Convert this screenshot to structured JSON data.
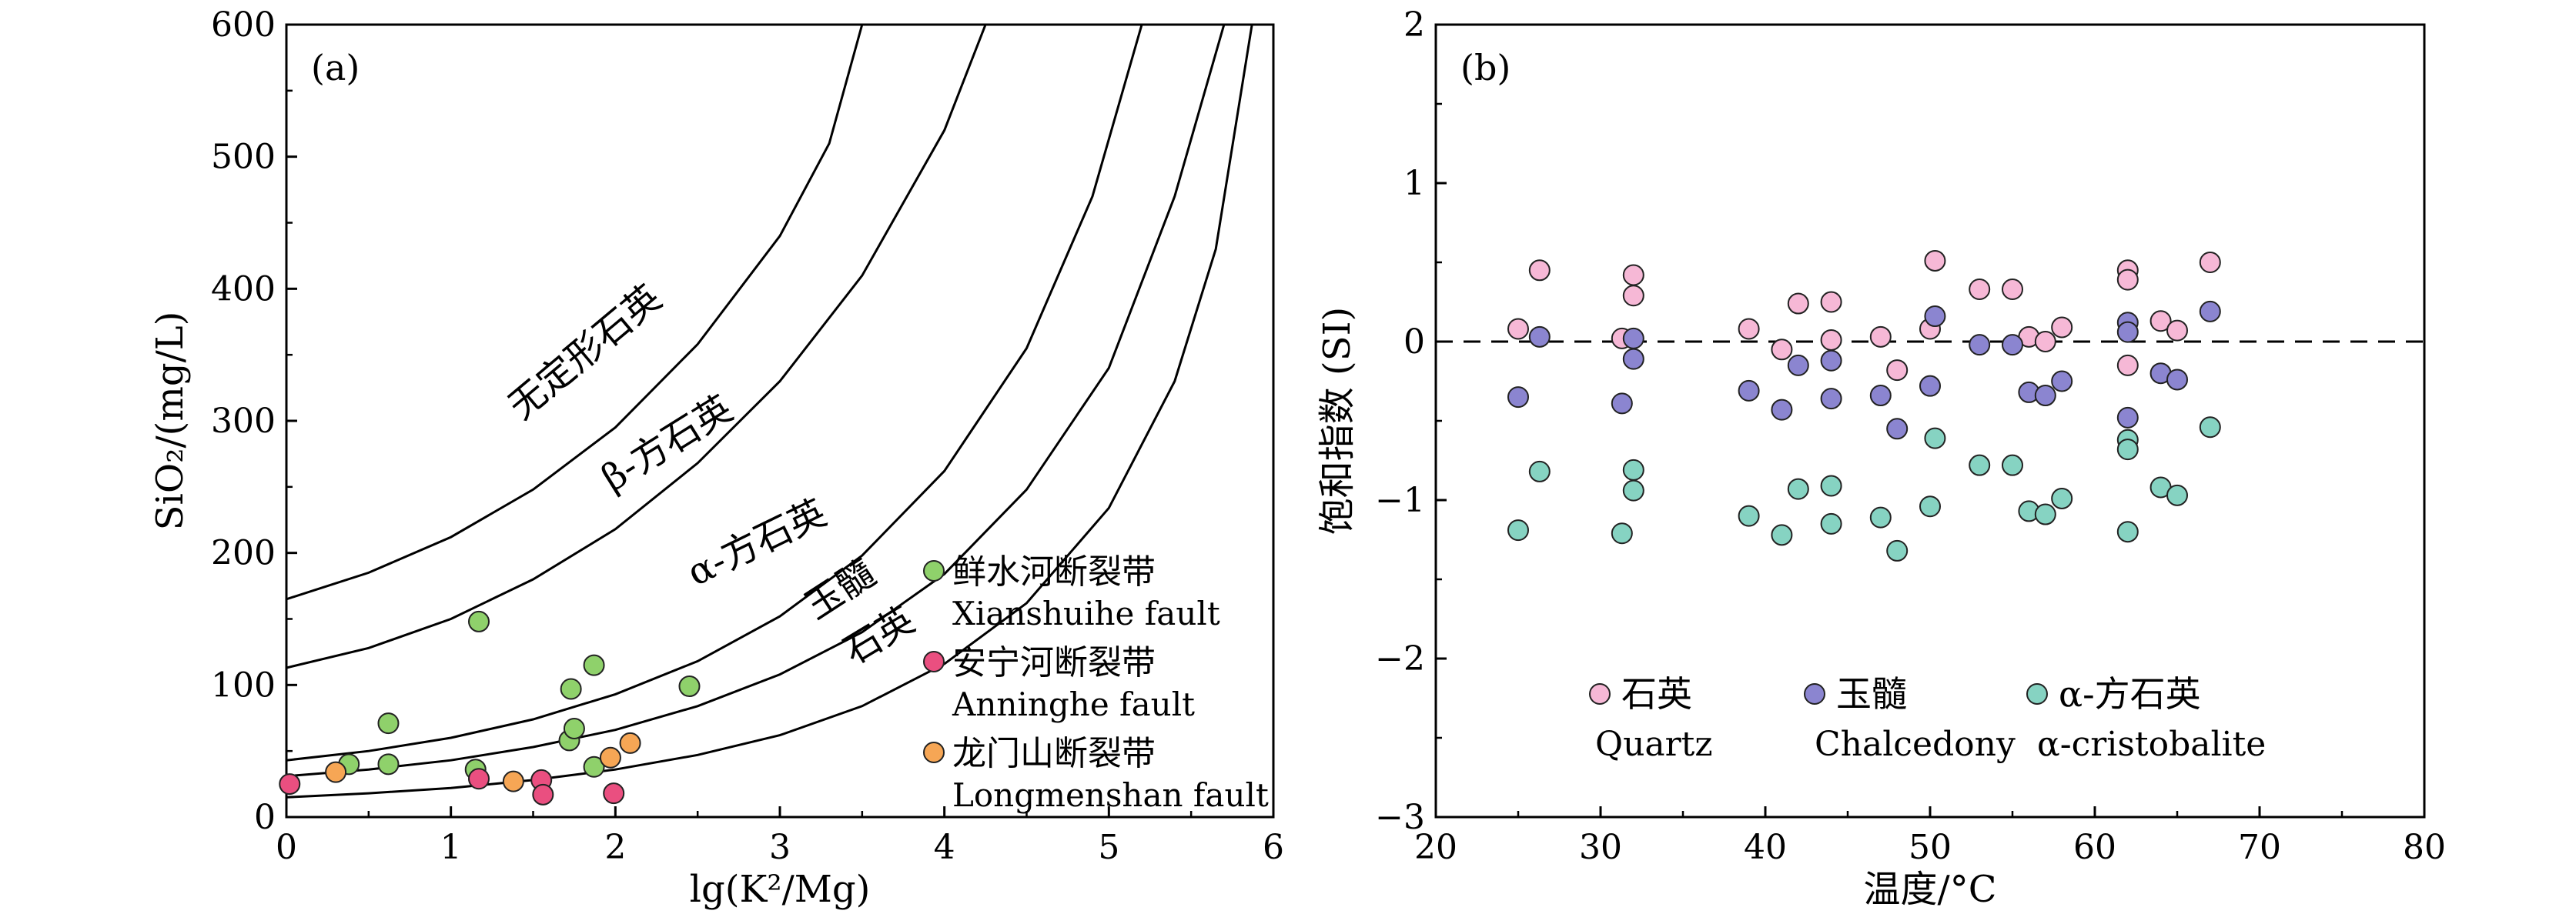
{
  "chart_data": [
    {
      "panel_label": "(a)",
      "type": "scatter",
      "xlabel": "lg(K²/Mg)",
      "ylabel": "SiO₂/(mg/L)",
      "xlim": [
        0,
        6
      ],
      "ylim": [
        0,
        600
      ],
      "xticks": [
        "0",
        "1",
        "2",
        "3",
        "4",
        "5",
        "6"
      ],
      "yticks": [
        "0",
        "100",
        "200",
        "300",
        "400",
        "500",
        "600"
      ],
      "curves": [
        {
          "label": "无定形石英",
          "points": [
            [
              0,
              165
            ],
            [
              0.5,
              185
            ],
            [
              1,
              212
            ],
            [
              1.5,
              248
            ],
            [
              2,
              295
            ],
            [
              2.5,
              358
            ],
            [
              3,
              440
            ],
            [
              3.3,
              510
            ],
            [
              3.5,
              600
            ]
          ]
        },
        {
          "label": "β-方石英",
          "points": [
            [
              0,
              113
            ],
            [
              0.5,
              128
            ],
            [
              1,
              150
            ],
            [
              1.5,
              180
            ],
            [
              2,
              218
            ],
            [
              2.5,
              268
            ],
            [
              3,
              330
            ],
            [
              3.5,
              410
            ],
            [
              4,
              520
            ],
            [
              4.25,
              600
            ]
          ]
        },
        {
          "label": "α-方石英",
          "points": [
            [
              0,
              43
            ],
            [
              0.5,
              50
            ],
            [
              1,
              60
            ],
            [
              1.5,
              74
            ],
            [
              2,
              93
            ],
            [
              2.5,
              118
            ],
            [
              3,
              152
            ],
            [
              3.5,
              198
            ],
            [
              4,
              262
            ],
            [
              4.5,
              355
            ],
            [
              4.9,
              470
            ],
            [
              5.2,
              600
            ]
          ]
        },
        {
          "label": "玉髓",
          "points": [
            [
              0,
              31
            ],
            [
              0.5,
              36
            ],
            [
              1,
              43
            ],
            [
              1.5,
              53
            ],
            [
              2,
              66
            ],
            [
              2.5,
              84
            ],
            [
              3,
              108
            ],
            [
              3.5,
              140
            ],
            [
              4,
              184
            ],
            [
              4.5,
              248
            ],
            [
              5,
              340
            ],
            [
              5.4,
              470
            ],
            [
              5.7,
              600
            ]
          ]
        },
        {
          "label": "石英",
          "points": [
            [
              0,
              15
            ],
            [
              0.5,
              18
            ],
            [
              1,
              22
            ],
            [
              1.5,
              28
            ],
            [
              2,
              36
            ],
            [
              2.5,
              47
            ],
            [
              3,
              62
            ],
            [
              3.5,
              84
            ],
            [
              4,
              116
            ],
            [
              4.5,
              162
            ],
            [
              5,
              234
            ],
            [
              5.4,
              330
            ],
            [
              5.65,
              430
            ],
            [
              5.87,
              600
            ]
          ]
        }
      ],
      "series": [
        {
          "name": "鲜水河断裂带",
          "name_en": "Xianshuihe fault",
          "color": "#8fd16b",
          "points": [
            [
              0.38,
              40
            ],
            [
              0.62,
              71
            ],
            [
              0.62,
              40
            ],
            [
              1.15,
              36
            ],
            [
              1.17,
              148
            ],
            [
              1.72,
              58
            ],
            [
              1.73,
              97
            ],
            [
              1.75,
              67
            ],
            [
              1.87,
              115
            ],
            [
              1.87,
              38
            ],
            [
              2.45,
              99
            ]
          ]
        },
        {
          "name": "安宁河断裂带",
          "name_en": "Anninghe fault",
          "color": "#ea4f80",
          "points": [
            [
              0.02,
              25
            ],
            [
              1.17,
              29
            ],
            [
              1.55,
              28
            ],
            [
              1.56,
              17
            ],
            [
              1.99,
              18
            ]
          ]
        },
        {
          "name": "龙门山断裂带",
          "name_en": "Longmenshan fault",
          "color": "#f6a655",
          "points": [
            [
              0.3,
              34
            ],
            [
              1.38,
              27
            ],
            [
              1.97,
              45
            ],
            [
              2.09,
              56
            ]
          ]
        }
      ]
    },
    {
      "panel_label": "(b)",
      "type": "scatter",
      "xlabel": "温度/°C",
      "ylabel": "饱和指数 (SI)",
      "xlim": [
        20,
        80
      ],
      "ylim": [
        -3,
        2
      ],
      "xticks": [
        "20",
        "30",
        "40",
        "50",
        "60",
        "70",
        "80"
      ],
      "yticks": [
        "−3",
        "−2",
        "−1",
        "0",
        "1",
        "2"
      ],
      "reference_line": {
        "y": 0,
        "style": "dashed"
      },
      "series": [
        {
          "name": "石英",
          "name_en": "Quartz",
          "color": "#f6b8d6",
          "points": [
            [
              25,
              0.08
            ],
            [
              26.3,
              0.45
            ],
            [
              31.3,
              0.02
            ],
            [
              32,
              0.42
            ],
            [
              32,
              0.29
            ],
            [
              39,
              0.08
            ],
            [
              41,
              -0.05
            ],
            [
              42,
              0.24
            ],
            [
              44,
              0.25
            ],
            [
              44,
              0.01
            ],
            [
              47,
              0.03
            ],
            [
              48,
              -0.18
            ],
            [
              50,
              0.08
            ],
            [
              50.3,
              0.51
            ],
            [
              53,
              0.33
            ],
            [
              55,
              0.33
            ],
            [
              56,
              0.03
            ],
            [
              57,
              0.0
            ],
            [
              58,
              0.09
            ],
            [
              62,
              0.45
            ],
            [
              62,
              0.39
            ],
            [
              62,
              -0.15
            ],
            [
              64,
              0.13
            ],
            [
              65,
              0.07
            ],
            [
              67,
              0.5
            ]
          ]
        },
        {
          "name": "玉髓",
          "name_en": "Chalcedony",
          "color": "#8b85d0",
          "points": [
            [
              25,
              -0.35
            ],
            [
              26.3,
              0.03
            ],
            [
              31.3,
              -0.39
            ],
            [
              32,
              0.02
            ],
            [
              32,
              -0.11
            ],
            [
              39,
              -0.31
            ],
            [
              41,
              -0.43
            ],
            [
              42,
              -0.15
            ],
            [
              44,
              -0.36
            ],
            [
              44,
              -0.12
            ],
            [
              47,
              -0.34
            ],
            [
              48,
              -0.55
            ],
            [
              50,
              -0.28
            ],
            [
              50.3,
              0.16
            ],
            [
              53,
              -0.02
            ],
            [
              55,
              -0.02
            ],
            [
              56,
              -0.32
            ],
            [
              57,
              -0.34
            ],
            [
              58,
              -0.25
            ],
            [
              62,
              0.12
            ],
            [
              62,
              0.06
            ],
            [
              62,
              -0.48
            ],
            [
              64,
              -0.2
            ],
            [
              65,
              -0.24
            ],
            [
              67,
              0.19
            ]
          ]
        },
        {
          "name": "α-方石英",
          "name_en": "α-cristobalite",
          "color": "#86d3c2",
          "points": [
            [
              25,
              -1.19
            ],
            [
              26.3,
              -0.82
            ],
            [
              31.3,
              -1.21
            ],
            [
              32,
              -0.81
            ],
            [
              32,
              -0.94
            ],
            [
              39,
              -1.1
            ],
            [
              41,
              -1.22
            ],
            [
              42,
              -0.93
            ],
            [
              44,
              -0.91
            ],
            [
              44,
              -1.15
            ],
            [
              47,
              -1.11
            ],
            [
              48,
              -1.32
            ],
            [
              50,
              -1.04
            ],
            [
              50.3,
              -0.61
            ],
            [
              53,
              -0.78
            ],
            [
              55,
              -0.78
            ],
            [
              56,
              -1.07
            ],
            [
              57,
              -1.09
            ],
            [
              58,
              -0.99
            ],
            [
              62,
              -0.62
            ],
            [
              62,
              -0.68
            ],
            [
              62,
              -1.2
            ],
            [
              64,
              -0.92
            ],
            [
              65,
              -0.97
            ],
            [
              67,
              -0.54
            ]
          ]
        }
      ]
    }
  ]
}
